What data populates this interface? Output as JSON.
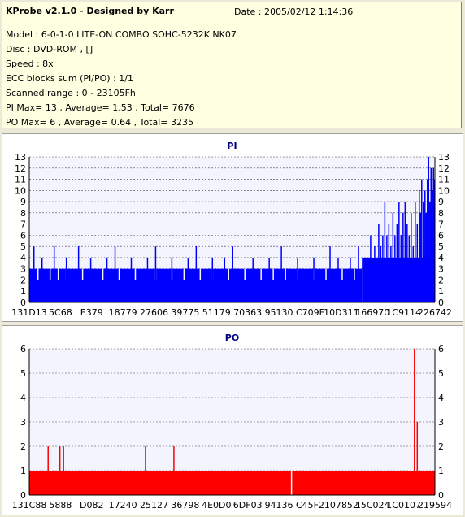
{
  "info": {
    "title": "KProbe v2.1.0 - Designed by Karr",
    "date": "Date : 2005/02/12 1:14:36",
    "lines": [
      "Model : 6-0-1-0 LITE-ON COMBO SOHC-5232K NK07",
      "Disc : DVD-ROM ,  []",
      "Speed : 8x",
      "ECC blocks sum (PI/PO) : 1/1",
      "Scanned range : 0 - 23105Fh",
      "PI Max= 13 , Average= 1.53 , Total= 7676",
      "PO Max= 6 , Average= 0.64 , Total= 3235"
    ]
  },
  "colors": {
    "pi_bar": "#0000ff",
    "po_bar": "#ff0000",
    "plot_bg": "#f4f4ff",
    "title": "#000080"
  },
  "chart_data": [
    {
      "type": "bar",
      "title": "PI",
      "ylim": [
        0,
        13
      ],
      "yticks": [
        0,
        1,
        2,
        3,
        4,
        5,
        6,
        7,
        8,
        9,
        10,
        11,
        12,
        13
      ],
      "xtick_labels": [
        "131D13",
        "5C68",
        "E379",
        "18779",
        "27606",
        "39775",
        "51179",
        "70363",
        "95130",
        "C709F",
        "10D311",
        "166970",
        "1C9114",
        "226742"
      ],
      "grid": true,
      "baseline": {
        "segments": [
          [
            0,
            0.82,
            3
          ],
          [
            0.82,
            1.0,
            4
          ]
        ]
      },
      "low_dips": [
        0.02,
        0.05,
        0.07,
        0.09,
        0.13,
        0.18,
        0.22,
        0.26,
        0.31,
        0.35,
        0.38,
        0.42,
        0.45,
        0.49,
        0.53,
        0.57,
        0.6,
        0.63,
        0.66,
        0.7,
        0.73,
        0.77,
        0.8
      ],
      "spikes": [
        {
          "x": 0.01,
          "v": 5
        },
        {
          "x": 0.03,
          "v": 4
        },
        {
          "x": 0.06,
          "v": 5
        },
        {
          "x": 0.09,
          "v": 4
        },
        {
          "x": 0.12,
          "v": 5
        },
        {
          "x": 0.15,
          "v": 4
        },
        {
          "x": 0.19,
          "v": 4
        },
        {
          "x": 0.21,
          "v": 5
        },
        {
          "x": 0.25,
          "v": 4
        },
        {
          "x": 0.29,
          "v": 4
        },
        {
          "x": 0.31,
          "v": 5
        },
        {
          "x": 0.35,
          "v": 4
        },
        {
          "x": 0.39,
          "v": 4
        },
        {
          "x": 0.41,
          "v": 5
        },
        {
          "x": 0.45,
          "v": 4
        },
        {
          "x": 0.48,
          "v": 4
        },
        {
          "x": 0.5,
          "v": 5
        },
        {
          "x": 0.55,
          "v": 4
        },
        {
          "x": 0.59,
          "v": 4
        },
        {
          "x": 0.62,
          "v": 5
        },
        {
          "x": 0.66,
          "v": 4
        },
        {
          "x": 0.7,
          "v": 4
        },
        {
          "x": 0.74,
          "v": 5
        },
        {
          "x": 0.76,
          "v": 4
        },
        {
          "x": 0.79,
          "v": 4
        },
        {
          "x": 0.81,
          "v": 5
        },
        {
          "x": 0.83,
          "v": 4
        },
        {
          "x": 0.84,
          "v": 6
        },
        {
          "x": 0.85,
          "v": 5
        },
        {
          "x": 0.86,
          "v": 7
        },
        {
          "x": 0.865,
          "v": 5
        },
        {
          "x": 0.87,
          "v": 6
        },
        {
          "x": 0.875,
          "v": 9
        },
        {
          "x": 0.88,
          "v": 6
        },
        {
          "x": 0.885,
          "v": 7
        },
        {
          "x": 0.89,
          "v": 5
        },
        {
          "x": 0.895,
          "v": 8
        },
        {
          "x": 0.9,
          "v": 6
        },
        {
          "x": 0.905,
          "v": 7
        },
        {
          "x": 0.91,
          "v": 9
        },
        {
          "x": 0.915,
          "v": 6
        },
        {
          "x": 0.92,
          "v": 8
        },
        {
          "x": 0.925,
          "v": 9
        },
        {
          "x": 0.93,
          "v": 7
        },
        {
          "x": 0.935,
          "v": 6
        },
        {
          "x": 0.94,
          "v": 8
        },
        {
          "x": 0.945,
          "v": 5
        },
        {
          "x": 0.95,
          "v": 9
        },
        {
          "x": 0.955,
          "v": 7
        },
        {
          "x": 0.96,
          "v": 10
        },
        {
          "x": 0.963,
          "v": 8
        },
        {
          "x": 0.966,
          "v": 11
        },
        {
          "x": 0.97,
          "v": 9
        },
        {
          "x": 0.974,
          "v": 10
        },
        {
          "x": 0.977,
          "v": 8
        },
        {
          "x": 0.98,
          "v": 11
        },
        {
          "x": 0.983,
          "v": 13
        },
        {
          "x": 0.986,
          "v": 9
        },
        {
          "x": 0.989,
          "v": 12
        },
        {
          "x": 0.992,
          "v": 10
        },
        {
          "x": 0.995,
          "v": 12
        },
        {
          "x": 0.998,
          "v": 11
        }
      ]
    },
    {
      "type": "bar",
      "title": "PO",
      "ylim": [
        0,
        6
      ],
      "yticks": [
        0,
        1,
        2,
        3,
        4,
        5,
        6
      ],
      "xtick_labels": [
        "131C88",
        "5888",
        "D082",
        "17240",
        "25127",
        "36798",
        "4E0D0",
        "6DF03",
        "94136",
        "C45F2",
        "107852",
        "15C024",
        "1C0107",
        "219594"
      ],
      "grid": true,
      "baseline": {
        "segments": [
          [
            0,
            1.0,
            1
          ]
        ]
      },
      "low_dips": [
        0.645
      ],
      "spikes": [
        {
          "x": 0.045,
          "v": 2
        },
        {
          "x": 0.074,
          "v": 2
        },
        {
          "x": 0.083,
          "v": 2
        },
        {
          "x": 0.285,
          "v": 2
        },
        {
          "x": 0.355,
          "v": 2
        },
        {
          "x": 0.948,
          "v": 6
        },
        {
          "x": 0.955,
          "v": 3
        }
      ]
    }
  ]
}
